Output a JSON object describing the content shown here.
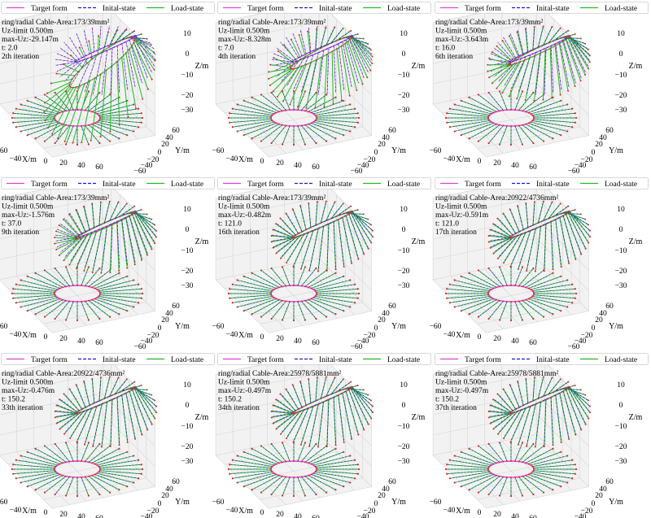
{
  "legend": {
    "target": "Target form",
    "initial": "Inital-state",
    "load": "Load-state"
  },
  "axes": {
    "x_label": "X/m",
    "y_label": "Y/m",
    "z_label": "Z/m",
    "x_ticks": [
      "−60",
      "−40",
      "0",
      "20",
      "40",
      "60"
    ],
    "y_ticks": [
      "60",
      "40",
      "20",
      "0",
      "−20",
      "−40",
      "−60"
    ],
    "z_ticks": [
      "10",
      "0",
      "−10",
      "−20",
      "−30"
    ]
  },
  "colors": {
    "target": "#e040e0",
    "initial": "#1a1acc",
    "load": "#22bb22",
    "node": "#dd2222",
    "grid": "#d6d6d6",
    "pane": "#f2f2f2"
  },
  "chart_data": [
    {
      "type": "line3d",
      "info": [
        "ring/radial Cable-Area:173/39mm²",
        "Uz-limit 0.500m",
        "max-Uz:-29.147m",
        "t: 2.0",
        "2th iteration"
      ],
      "max_uz": -29.147,
      "t": 2.0,
      "iteration": 2
    },
    {
      "type": "line3d",
      "info": [
        "ring/radial Cable-Area:173/39mm²",
        "Uz-limit 0.500m",
        "max-Uz:-8.328m",
        "t: 7.0",
        "4th iteration"
      ],
      "max_uz": -8.328,
      "t": 7.0,
      "iteration": 4
    },
    {
      "type": "line3d",
      "info": [
        "ring/radial Cable-Area:173/39mm²",
        "Uz-limit 0.500m",
        "max-Uz:-3.643m",
        "t: 16.0",
        "6th iteration"
      ],
      "max_uz": -3.643,
      "t": 16.0,
      "iteration": 6
    },
    {
      "type": "line3d",
      "info": [
        "ring/radial Cable-Area:173/39mm²",
        "Uz-limit 0.500m",
        "max-Uz:-1.576m",
        "t: 37.0",
        "9th iteration"
      ],
      "max_uz": -1.576,
      "t": 37.0,
      "iteration": 9
    },
    {
      "type": "line3d",
      "info": [
        "ring/radial Cable-Area:173/39mm²",
        "Uz-limit 0.500m",
        "max-Uz:-0.482m",
        "t: 121.0",
        "16th iteration"
      ],
      "max_uz": -0.482,
      "t": 121.0,
      "iteration": 16
    },
    {
      "type": "line3d",
      "info": [
        "ring/radial Cable-Area:20922/4736mm²",
        "Uz-limit 0.500m",
        "max-Uz:-0.591m",
        "t: 121.0",
        "17th iteration"
      ],
      "max_uz": -0.591,
      "t": 121.0,
      "iteration": 17
    },
    {
      "type": "line3d",
      "info": [
        "ring/radial Cable-Area:20922/4736mm²",
        "Uz-limit 0.500m",
        "max-Uz:-0.476m",
        "t: 150.2",
        "33th iteration"
      ],
      "max_uz": -0.476,
      "t": 150.2,
      "iteration": 33
    },
    {
      "type": "line3d",
      "info": [
        "ring/radial Cable-Area:25978/5881mm²",
        "Uz-limit 0.500m",
        "max-Uz:-0.497m",
        "t: 150.2",
        "34th iteration"
      ],
      "max_uz": -0.497,
      "t": 150.2,
      "iteration": 34
    },
    {
      "type": "line3d",
      "info": [
        "ring/radial Cable-Area:25978/5881mm²",
        "Uz-limit 0.500m",
        "max-Uz:-0.497m",
        "t: 150.2",
        "37th iteration"
      ],
      "max_uz": -0.497,
      "t": 150.2,
      "iteration": 37
    }
  ]
}
